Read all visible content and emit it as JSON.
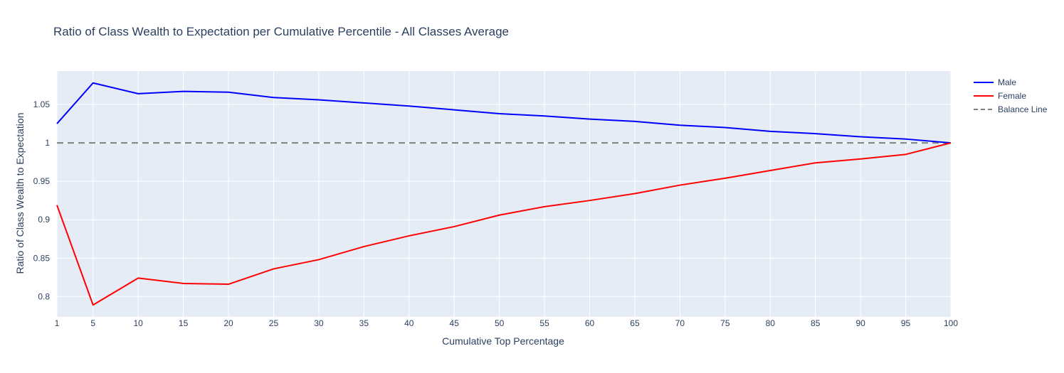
{
  "chart_data": {
    "type": "line",
    "title": "Ratio of Class Wealth to Expectation per Cumulative Percentile - All Classes Average",
    "xlabel": "Cumulative Top Percentage",
    "ylabel": "Ratio of Class Wealth to Expectation",
    "x": [
      1,
      5,
      10,
      15,
      20,
      25,
      30,
      35,
      40,
      45,
      50,
      55,
      60,
      65,
      70,
      75,
      80,
      85,
      90,
      95,
      100
    ],
    "x_tick_labels": [
      "1",
      "5",
      "10",
      "15",
      "20",
      "25",
      "30",
      "35",
      "40",
      "45",
      "50",
      "55",
      "60",
      "65",
      "70",
      "75",
      "80",
      "85",
      "90",
      "95",
      "100"
    ],
    "y_ticks": [
      0.8,
      0.85,
      0.9,
      0.95,
      1,
      1.05
    ],
    "y_tick_labels": [
      "0.8",
      "0.85",
      "0.9",
      "0.95",
      "1",
      "1.05"
    ],
    "ylim": [
      0.7735,
      1.0935
    ],
    "grid": true,
    "legend_position": "top-right",
    "series": [
      {
        "name": "Male",
        "color": "#0000ff",
        "dash": "solid",
        "values": [
          1.025,
          1.078,
          1.064,
          1.067,
          1.066,
          1.059,
          1.056,
          1.052,
          1.048,
          1.043,
          1.038,
          1.035,
          1.031,
          1.028,
          1.023,
          1.02,
          1.015,
          1.012,
          1.008,
          1.005,
          1.0
        ]
      },
      {
        "name": "Female",
        "color": "#ff0000",
        "dash": "solid",
        "values": [
          0.919,
          0.789,
          0.824,
          0.817,
          0.816,
          0.836,
          0.848,
          0.865,
          0.879,
          0.891,
          0.906,
          0.917,
          0.925,
          0.934,
          0.945,
          0.954,
          0.964,
          0.974,
          0.979,
          0.985,
          1.0
        ]
      },
      {
        "name": "Balance Line",
        "color": "#808080",
        "dash": "dash",
        "values": [
          1,
          1,
          1,
          1,
          1,
          1,
          1,
          1,
          1,
          1,
          1,
          1,
          1,
          1,
          1,
          1,
          1,
          1,
          1,
          1,
          1
        ]
      }
    ]
  },
  "colors": {
    "plot_background": "#e5ecf6",
    "grid": "#ffffff",
    "text": "#2a3f5f"
  }
}
